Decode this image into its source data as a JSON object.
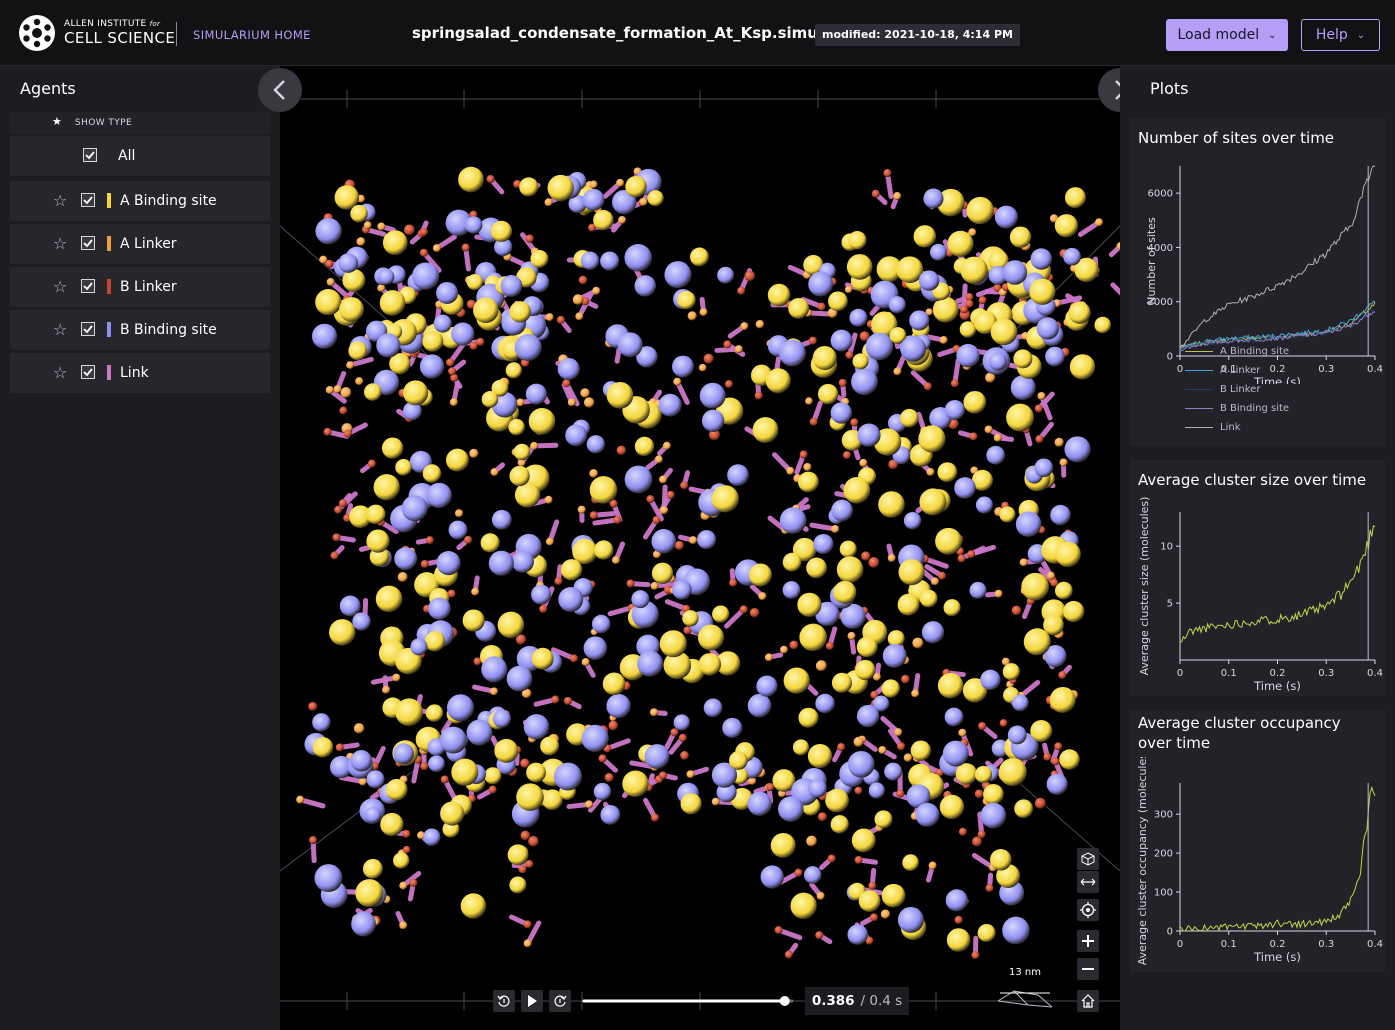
{
  "header": {
    "logo_small": "ALLEN INSTITUTE",
    "logo_small_for": "for",
    "logo_big": "CELL SCIENCE",
    "home_link": "SIMULARIUM HOME",
    "file_title": "springsalad_condensate_formation_At_Ksp.simularium",
    "modified": "modified: 2021-10-18, 4:14 PM",
    "load_button": "Load model",
    "help_button": "Help"
  },
  "agents_panel": {
    "title": "Agents",
    "show_type": "SHOW TYPE",
    "all_label": "All",
    "items": [
      {
        "label": "A Binding site",
        "color": "#f3d53b"
      },
      {
        "label": "A Linker",
        "color": "#f19d3b"
      },
      {
        "label": "B Linker",
        "color": "#c2462f"
      },
      {
        "label": "B Binding site",
        "color": "#8f8ff0"
      },
      {
        "label": "Link",
        "color": "#cc78c8"
      }
    ]
  },
  "plots_panel": {
    "title": "Plots",
    "plots": [
      {
        "title": "Number of sites over time",
        "ylabel": "Number of sites",
        "xlabel": "Time (s)",
        "yticks": [
          "0",
          "2000",
          "4000",
          "6000"
        ],
        "xticks": [
          "0",
          "0.1",
          "0.2",
          "0.3",
          "0.4"
        ],
        "legend": [
          {
            "name": "A Binding site",
            "color": "#bcc24c"
          },
          {
            "name": "A Linker",
            "color": "#3aa6d8"
          },
          {
            "name": "B Linker",
            "color": "#1f3f73"
          },
          {
            "name": "B Binding site",
            "color": "#8c7fc9"
          },
          {
            "name": "Link",
            "color": "#b0b0b0"
          }
        ]
      },
      {
        "title": "Average cluster size over time",
        "ylabel": "Average cluster size (molecules)",
        "xlabel": "Time (s)",
        "yticks": [
          "5",
          "10"
        ],
        "xticks": [
          "0",
          "0.1",
          "0.2",
          "0.3",
          "0.4"
        ]
      },
      {
        "title": "Average cluster occupancy over time",
        "ylabel": "Average cluster occupancy (molecules)",
        "xlabel": "Time (s)",
        "yticks": [
          "0",
          "100",
          "200",
          "300"
        ],
        "xticks": [
          "0",
          "0.1",
          "0.2",
          "0.3",
          "0.4"
        ]
      }
    ]
  },
  "chart_data": [
    {
      "type": "line",
      "title": "Number of sites over time",
      "xlabel": "Time (s)",
      "ylabel": "Number of sites",
      "xlim": [
        0,
        0.4
      ],
      "ylim": [
        0,
        7000
      ],
      "x": [
        0,
        0.05,
        0.1,
        0.15,
        0.2,
        0.25,
        0.3,
        0.35,
        0.4
      ],
      "series": [
        {
          "name": "A Binding site",
          "values": [
            300,
            500,
            600,
            650,
            700,
            800,
            900,
            1200,
            1900
          ]
        },
        {
          "name": "A Linker",
          "values": [
            300,
            550,
            650,
            700,
            750,
            850,
            950,
            1300,
            2000
          ]
        },
        {
          "name": "B Linker",
          "values": [
            250,
            450,
            550,
            600,
            650,
            750,
            850,
            1100,
            1700
          ]
        },
        {
          "name": "B Binding site",
          "values": [
            250,
            450,
            550,
            600,
            650,
            750,
            850,
            1100,
            1700
          ]
        },
        {
          "name": "Link",
          "values": [
            300,
            1300,
            1900,
            2200,
            2600,
            3100,
            3800,
            4800,
            7200
          ]
        }
      ],
      "marker_x": 0.386
    },
    {
      "type": "line",
      "title": "Average cluster size over time",
      "xlabel": "Time (s)",
      "ylabel": "Average cluster size (molecules)",
      "xlim": [
        0,
        0.4
      ],
      "ylim": [
        0,
        13
      ],
      "x": [
        0,
        0.02,
        0.05,
        0.1,
        0.15,
        0.2,
        0.25,
        0.3,
        0.33,
        0.36,
        0.38,
        0.4
      ],
      "series": [
        {
          "name": "",
          "values": [
            1.5,
            2.5,
            2.8,
            3.1,
            3.4,
            3.6,
            4.0,
            4.7,
            5.8,
            7.5,
            9.5,
            12.3
          ]
        }
      ],
      "marker_x": 0.386
    },
    {
      "type": "line",
      "title": "Average cluster occupancy over time",
      "xlabel": "Time (s)",
      "ylabel": "Average cluster occupancy (molecules)",
      "xlim": [
        0,
        0.4
      ],
      "ylim": [
        0,
        380
      ],
      "x": [
        0,
        0.05,
        0.1,
        0.15,
        0.18,
        0.2,
        0.25,
        0.3,
        0.33,
        0.35,
        0.37,
        0.38,
        0.39,
        0.4
      ],
      "series": [
        {
          "name": "",
          "values": [
            5,
            8,
            10,
            12,
            15,
            20,
            18,
            25,
            40,
            80,
            150,
            250,
            330,
            370
          ]
        }
      ],
      "marker_x": 0.386
    }
  ],
  "playback": {
    "current_time": "0.386",
    "total_time": "/ 0.4 s",
    "progress": 0.965,
    "scale_label": "13 nm"
  }
}
